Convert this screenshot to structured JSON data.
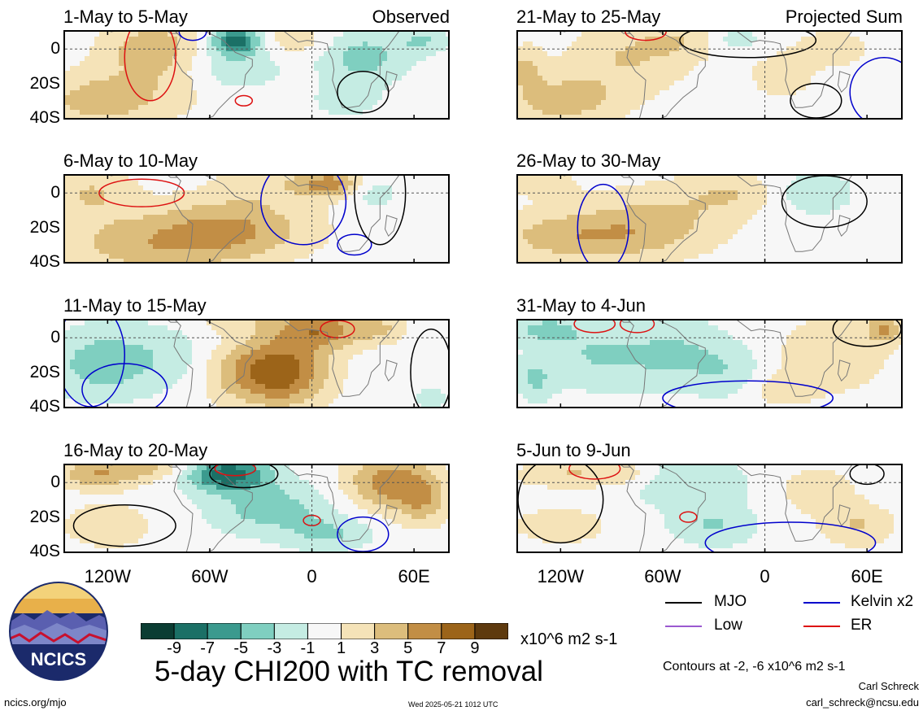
{
  "panels": [
    {
      "title": "1-May to 5-May",
      "tag": "Observed",
      "seed": 1
    },
    {
      "title": "6-May to 10-May",
      "tag": "",
      "seed": 2
    },
    {
      "title": "11-May to 15-May",
      "tag": "",
      "seed": 3
    },
    {
      "title": "16-May to 20-May",
      "tag": "",
      "seed": 4
    },
    {
      "title": "21-May to 25-May",
      "tag": "Projected Sum",
      "seed": 5
    },
    {
      "title": "26-May to 30-May",
      "tag": "",
      "seed": 6
    },
    {
      "title": "31-May to 4-Jun",
      "tag": "",
      "seed": 7
    },
    {
      "title": "5-Jun to 9-Jun",
      "tag": "",
      "seed": 8
    }
  ],
  "chart_data": {
    "type": "heatmap",
    "title": "5-day CHI200 with TC removal",
    "units": "x10^6 m2 s-1",
    "y_ticks": [
      "0",
      "20S",
      "40S"
    ],
    "x_ticks": [
      "120W",
      "60W",
      "0",
      "60E"
    ],
    "lon_range": [
      -145,
      80
    ],
    "lat_range": [
      -40,
      10
    ],
    "colorbar": {
      "tick_labels": [
        "-9",
        "-7",
        "-5",
        "-3",
        "-1",
        "1",
        "3",
        "5",
        "7",
        "9"
      ],
      "colors": [
        "#0b3d33",
        "#1b7066",
        "#3b9a8e",
        "#7fcfc0",
        "#c5ece3",
        "#f7f7f7",
        "#f5e3b8",
        "#dcbd7c",
        "#c28e45",
        "#9c6419",
        "#5e3a0e"
      ]
    },
    "contours_label": "Contours at -2, -6 x10^6 m2 s-1",
    "legend": [
      {
        "name": "MJO",
        "color": "#000000"
      },
      {
        "name": "Kelvin x2",
        "color": "#0000cc"
      },
      {
        "name": "Low",
        "color": "#9b59d0"
      },
      {
        "name": "ER",
        "color": "#dd1111"
      }
    ]
  },
  "footer": {
    "author": "Carl Schreck",
    "email": "carl_schreck@ncsu.edu",
    "site": "ncics.org/mjo",
    "timestamp": "Wed 2025-05-21 1012 UTC",
    "logo_text": "NCICS"
  }
}
